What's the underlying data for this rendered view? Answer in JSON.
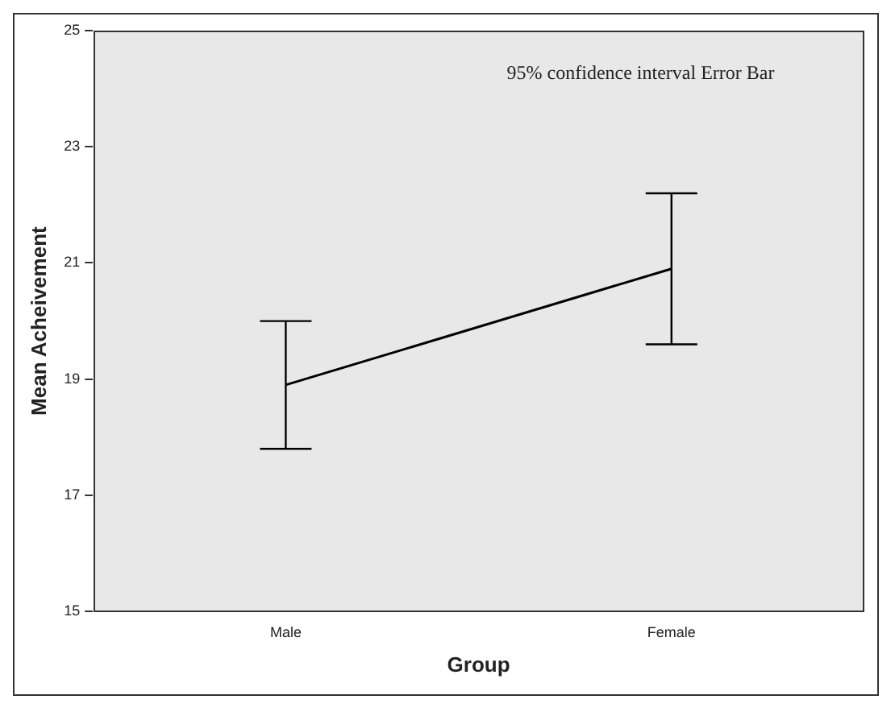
{
  "chart_data": {
    "type": "line",
    "xlabel": "Group",
    "ylabel": "Mean Acheivement",
    "annotations": [
      "95% confidence interval Error Bar"
    ],
    "categories": [
      "Male",
      "Female"
    ],
    "series": [
      {
        "color": "#000000",
        "values": [
          18.9,
          20.9
        ],
        "errors": [
          [
            17.8,
            20.0
          ],
          [
            19.6,
            22.2
          ]
        ]
      }
    ],
    "ylim": [
      15,
      25
    ],
    "yticks": [
      15,
      17,
      19,
      21,
      23,
      25
    ],
    "grid": false,
    "legend": false,
    "marker": "none",
    "line_style": "solid"
  }
}
